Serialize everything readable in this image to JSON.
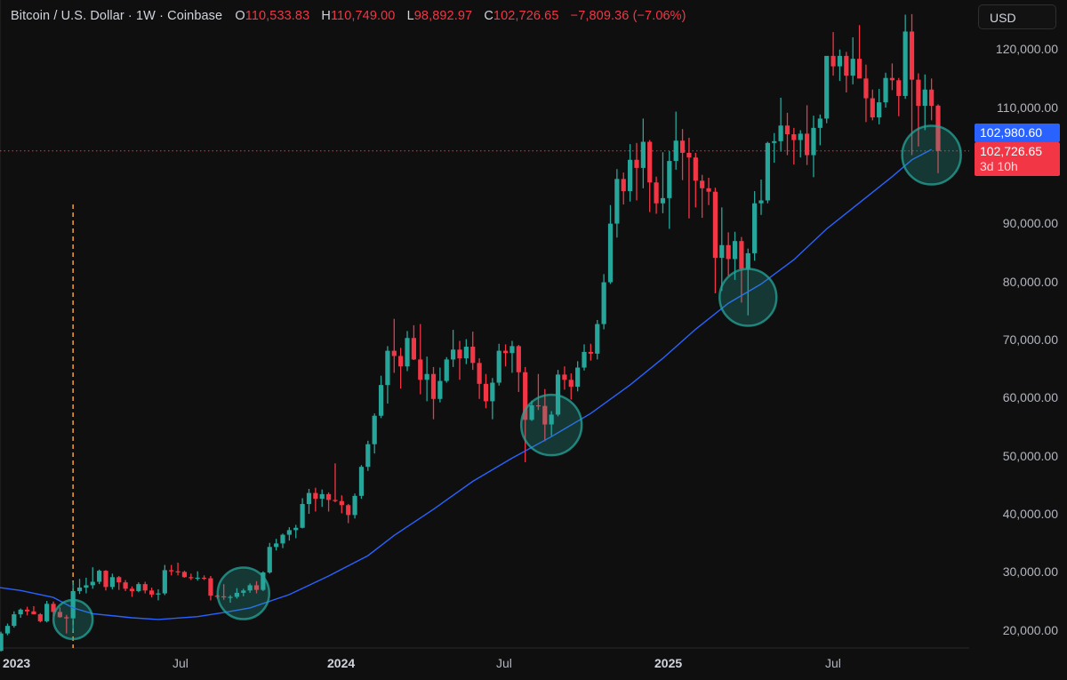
{
  "header": {
    "symbol": "Bitcoin / U.S. Dollar · 1W · Coinbase",
    "open_label": "O",
    "open": "110,533.83",
    "high_label": "H",
    "high": "110,749.00",
    "low_label": "L",
    "low": "98,892.97",
    "close_label": "C",
    "close": "102,726.65",
    "change": "−7,809.36 (−7.06%)"
  },
  "currency_button": "USD",
  "price_axis": [
    "120,000.00",
    "110,000.00",
    "90,000.00",
    "80,000.00",
    "70,000.00",
    "60,000.00",
    "50,000.00",
    "40,000.00",
    "30,000.00",
    "20,000.00"
  ],
  "price_tags": {
    "ma_value": "102,980.60",
    "last_price": "102,726.65",
    "countdown": "3d 10h"
  },
  "time_axis": [
    {
      "label": "2023",
      "bold": true
    },
    {
      "label": "Jul",
      "bold": false
    },
    {
      "label": "2024",
      "bold": true
    },
    {
      "label": "Jul",
      "bold": false
    },
    {
      "label": "2025",
      "bold": true
    },
    {
      "label": "Jul",
      "bold": false
    }
  ],
  "colors": {
    "background": "#0f0f0f",
    "up": "#26a69a",
    "down": "#f23645",
    "ma_line": "#2962ff",
    "vertical_marker": "#f0a040",
    "highlight_circle": "#26a69a"
  },
  "chart_data": {
    "type": "candlestick",
    "title": "Bitcoin / U.S. Dollar · 1W · Coinbase",
    "interval": "1W",
    "ylabel": "USD",
    "ylim": [
      17500,
      127000
    ],
    "y_ticks": [
      20000,
      30000,
      40000,
      50000,
      60000,
      70000,
      80000,
      90000,
      100000,
      110000,
      120000
    ],
    "x_ticks": [
      "2023",
      "Jul",
      "2024",
      "Jul",
      "2025",
      "Jul"
    ],
    "last": {
      "open": 110533.83,
      "high": 110749.0,
      "low": 98892.97,
      "close": 102726.65,
      "change": -7809.36,
      "change_pct": -7.06
    },
    "moving_average_last": 102980.6,
    "annotations": [
      {
        "type": "vertical_dashed_line",
        "week_index": 11
      },
      {
        "type": "circle",
        "label": "MA touch 1",
        "week_index": 11,
        "price": 22000
      },
      {
        "type": "circle",
        "label": "MA touch 2",
        "week_index": 37,
        "price": 26500
      },
      {
        "type": "circle",
        "label": "MA touch 3",
        "week_index": 84,
        "price": 55500
      },
      {
        "type": "circle",
        "label": "MA touch 4",
        "week_index": 114,
        "price": 77500
      },
      {
        "type": "circle",
        "label": "MA touch 5",
        "week_index": 142,
        "price": 102000
      }
    ],
    "ohlc": [
      [
        16600,
        19900,
        16500,
        19600
      ],
      [
        19600,
        21300,
        19300,
        20900
      ],
      [
        20900,
        23400,
        20600,
        22900
      ],
      [
        22900,
        23900,
        22300,
        23700
      ],
      [
        23700,
        24200,
        22700,
        23400
      ],
      [
        23400,
        24300,
        23000,
        22900
      ],
      [
        22900,
        23100,
        21500,
        21700
      ],
      [
        21700,
        25200,
        21500,
        24700
      ],
      [
        24700,
        25100,
        22600,
        23300
      ],
      [
        23300,
        24100,
        22300,
        22400
      ],
      [
        22400,
        22800,
        19600,
        22200
      ],
      [
        22200,
        28500,
        19900,
        26900
      ],
      [
        26900,
        29000,
        26400,
        27500
      ],
      [
        27500,
        29200,
        26500,
        27900
      ],
      [
        27900,
        31000,
        27300,
        28500
      ],
      [
        28500,
        30600,
        28100,
        30400
      ],
      [
        30400,
        30500,
        27000,
        27600
      ],
      [
        27600,
        29900,
        27200,
        29300
      ],
      [
        29300,
        29500,
        27100,
        28400
      ],
      [
        28400,
        28800,
        26900,
        27300
      ],
      [
        27300,
        27700,
        25900,
        26900
      ],
      [
        26900,
        28400,
        26700,
        28100
      ],
      [
        28100,
        28500,
        26500,
        27000
      ],
      [
        27000,
        27500,
        25800,
        26300
      ],
      [
        26300,
        27200,
        25300,
        26500
      ],
      [
        26500,
        31400,
        26200,
        30500
      ],
      [
        30500,
        31400,
        29600,
        30300
      ],
      [
        30300,
        31800,
        29600,
        30200
      ],
      [
        30200,
        30400,
        29200,
        29300
      ],
      [
        29300,
        29900,
        28800,
        29200
      ],
      [
        29200,
        30300,
        28700,
        29200
      ],
      [
        29200,
        29600,
        28800,
        29100
      ],
      [
        29100,
        29500,
        25300,
        26100
      ],
      [
        26100,
        26300,
        25600,
        26000
      ],
      [
        26000,
        28100,
        25400,
        25800
      ],
      [
        25800,
        26200,
        24900,
        25900
      ],
      [
        25900,
        27400,
        25600,
        26600
      ],
      [
        26600,
        27300,
        26000,
        27000
      ],
      [
        27000,
        28200,
        26600,
        27900
      ],
      [
        27900,
        28600,
        26500,
        27100
      ],
      [
        27100,
        30300,
        26900,
        30100
      ],
      [
        30100,
        35200,
        29900,
        34500
      ],
      [
        34500,
        35900,
        33900,
        35100
      ],
      [
        35100,
        36800,
        34300,
        36600
      ],
      [
        36600,
        37900,
        35600,
        37400
      ],
      [
        37400,
        38300,
        36000,
        37800
      ],
      [
        37800,
        42900,
        37700,
        41900
      ],
      [
        41900,
        44500,
        40200,
        43800
      ],
      [
        43800,
        44700,
        40600,
        42800
      ],
      [
        42800,
        44400,
        41400,
        43600
      ],
      [
        43600,
        43900,
        40600,
        42600
      ],
      [
        42600,
        48900,
        42200,
        42400
      ],
      [
        42400,
        43400,
        40300,
        41700
      ],
      [
        41700,
        41900,
        38600,
        40000
      ],
      [
        40000,
        43700,
        39400,
        43300
      ],
      [
        43300,
        48600,
        42800,
        48300
      ],
      [
        48300,
        52800,
        47600,
        52200
      ],
      [
        52200,
        57500,
        50600,
        57100
      ],
      [
        57100,
        64000,
        56700,
        62400
      ],
      [
        62400,
        69100,
        59200,
        68300
      ],
      [
        68300,
        73800,
        64500,
        67400
      ],
      [
        67400,
        68800,
        61800,
        65600
      ],
      [
        65600,
        71700,
        64800,
        70500
      ],
      [
        70500,
        72700,
        66700,
        66800
      ],
      [
        66800,
        72900,
        60800,
        63300
      ],
      [
        63300,
        67300,
        59600,
        64300
      ],
      [
        64300,
        65500,
        56500,
        60000
      ],
      [
        60000,
        65400,
        59400,
        63100
      ],
      [
        63100,
        67200,
        62800,
        66800
      ],
      [
        66800,
        71900,
        65500,
        68500
      ],
      [
        68500,
        70000,
        63300,
        67000
      ],
      [
        67000,
        70300,
        66000,
        69000
      ],
      [
        69000,
        71600,
        65000,
        66200
      ],
      [
        66200,
        67000,
        60000,
        62600
      ],
      [
        62600,
        64300,
        58400,
        59600
      ],
      [
        59600,
        63600,
        56500,
        62800
      ],
      [
        62800,
        69500,
        62300,
        68300
      ],
      [
        68300,
        69400,
        65600,
        67900
      ],
      [
        67900,
        70000,
        64500,
        69100
      ],
      [
        69100,
        69300,
        61200,
        64600
      ],
      [
        64600,
        65500,
        49100,
        56400
      ],
      [
        56400,
        59700,
        56200,
        58900
      ],
      [
        58900,
        64300,
        58100,
        58800
      ],
      [
        58800,
        61700,
        52700,
        55600
      ],
      [
        55600,
        57900,
        53600,
        57300
      ],
      [
        57300,
        65000,
        57000,
        64200
      ],
      [
        64200,
        65600,
        61600,
        63300
      ],
      [
        63300,
        64400,
        59900,
        62100
      ],
      [
        62100,
        66500,
        61300,
        65400
      ],
      [
        65400,
        69400,
        64900,
        68100
      ],
      [
        68100,
        69500,
        66600,
        67800
      ],
      [
        67800,
        73600,
        66800,
        72900
      ],
      [
        72900,
        81500,
        72000,
        80100
      ],
      [
        80100,
        93400,
        79800,
        90200
      ],
      [
        90200,
        99600,
        87800,
        97900
      ],
      [
        97900,
        99000,
        93500,
        95800
      ],
      [
        95800,
        103900,
        94000,
        101200
      ],
      [
        101200,
        104100,
        94200,
        99800
      ],
      [
        99800,
        108300,
        96300,
        104300
      ],
      [
        104300,
        104600,
        92200,
        97300
      ],
      [
        97300,
        98300,
        91900,
        93700
      ],
      [
        93700,
        102500,
        92000,
        94600
      ],
      [
        94600,
        102700,
        89300,
        101000
      ],
      [
        101000,
        109500,
        99500,
        104500
      ],
      [
        104500,
        106500,
        97700,
        102400
      ],
      [
        102400,
        105000,
        91100,
        101600
      ],
      [
        101600,
        102400,
        93000,
        97600
      ],
      [
        97600,
        98600,
        91200,
        96300
      ],
      [
        96300,
        98100,
        93400,
        95700
      ],
      [
        95700,
        96400,
        78200,
        84300
      ],
      [
        84300,
        93000,
        78600,
        86500
      ],
      [
        86500,
        88700,
        81200,
        84100
      ],
      [
        84100,
        88800,
        80500,
        87200
      ],
      [
        87200,
        87900,
        76600,
        82400
      ],
      [
        82400,
        85900,
        74400,
        85100
      ],
      [
        85100,
        95800,
        83800,
        93700
      ],
      [
        93700,
        97800,
        91700,
        94200
      ],
      [
        94200,
        104300,
        93700,
        104100
      ],
      [
        104100,
        105800,
        100700,
        104400
      ],
      [
        104400,
        111900,
        102600,
        107100
      ],
      [
        107100,
        109300,
        102000,
        105600
      ],
      [
        105600,
        106700,
        100400,
        104600
      ],
      [
        104600,
        106300,
        101600,
        105700
      ],
      [
        105700,
        110600,
        100300,
        102000
      ],
      [
        102000,
        108800,
        98200,
        106700
      ],
      [
        106700,
        109000,
        103700,
        108300
      ],
      [
        108300,
        118900,
        107500,
        119100
      ],
      [
        119100,
        123200,
        115700,
        117300
      ],
      [
        117300,
        120200,
        114800,
        119100
      ],
      [
        119100,
        119800,
        112800,
        115700
      ],
      [
        115700,
        122300,
        114200,
        118600
      ],
      [
        118600,
        124400,
        116800,
        115200
      ],
      [
        115200,
        117600,
        107700,
        111800
      ],
      [
        111800,
        113300,
        108000,
        108500
      ],
      [
        108500,
        113400,
        107300,
        111100
      ],
      [
        111100,
        116200,
        110200,
        115300
      ],
      [
        115300,
        117800,
        113200,
        114900
      ],
      [
        114900,
        115300,
        108700,
        112200
      ],
      [
        112200,
        126200,
        111700,
        123300
      ],
      [
        123300,
        126300,
        102000,
        115000
      ],
      [
        115000,
        116100,
        103500,
        110500
      ],
      [
        110500,
        115900,
        106300,
        113300
      ],
      [
        113300,
        115200,
        108000,
        110500
      ],
      [
        110533.83,
        110749.0,
        98892.97,
        102726.65
      ]
    ],
    "ma": [
      [
        -2,
        27800
      ],
      [
        3,
        27000
      ],
      [
        8,
        25800
      ],
      [
        11,
        24000
      ],
      [
        14,
        23000
      ],
      [
        20,
        22300
      ],
      [
        24,
        22000
      ],
      [
        30,
        22500
      ],
      [
        34,
        23200
      ],
      [
        38,
        24000
      ],
      [
        44,
        26300
      ],
      [
        50,
        29500
      ],
      [
        56,
        33000
      ],
      [
        60,
        36500
      ],
      [
        66,
        41000
      ],
      [
        72,
        45800
      ],
      [
        78,
        49800
      ],
      [
        84,
        53500
      ],
      [
        90,
        57500
      ],
      [
        96,
        62400
      ],
      [
        101,
        67000
      ],
      [
        106,
        72000
      ],
      [
        111,
        76500
      ],
      [
        116,
        79800
      ],
      [
        121,
        84000
      ],
      [
        126,
        89300
      ],
      [
        131,
        93800
      ],
      [
        136,
        98300
      ],
      [
        139,
        101200
      ],
      [
        142,
        102980.6
      ]
    ]
  }
}
